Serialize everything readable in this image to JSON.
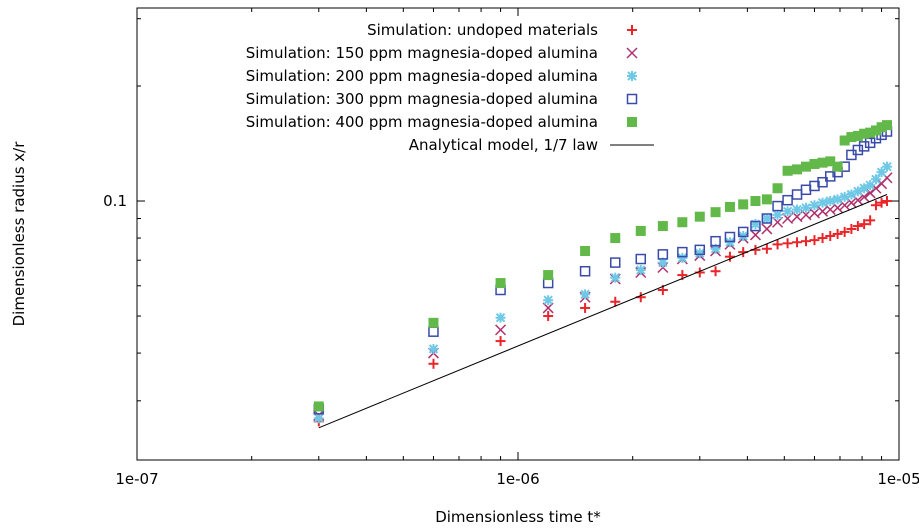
{
  "chart_data": {
    "type": "scatter",
    "title": "",
    "xlabel": "Dimensionless time t*",
    "ylabel": "Dimensionless radius x/r",
    "x_scale": "log",
    "y_scale": "log",
    "xlim": [
      1e-07,
      1e-05
    ],
    "ylim": [
      0.021,
      0.32
    ],
    "x_ticks": [
      {
        "value": 1e-07,
        "label": "1e-07"
      },
      {
        "value": 1e-06,
        "label": "1e-06"
      },
      {
        "value": 1e-05,
        "label": "1e-05"
      }
    ],
    "y_ticks": [
      {
        "value": 0.1,
        "label": "0.1"
      }
    ],
    "grid": false,
    "legend_position": "top-right",
    "series": [
      {
        "name": "Simulation: undoped materials",
        "marker": "plus",
        "color": "#e8262a",
        "points": [
          [
            3e-07,
            0.0265
          ],
          [
            6e-07,
            0.0375
          ],
          [
            9e-07,
            0.043
          ],
          [
            1.2e-06,
            0.05
          ],
          [
            1.5e-06,
            0.0525
          ],
          [
            1.8e-06,
            0.0545
          ],
          [
            2.1e-06,
            0.056
          ],
          [
            2.4e-06,
            0.0585
          ],
          [
            2.7e-06,
            0.064
          ],
          [
            3e-06,
            0.065
          ],
          [
            3.3e-06,
            0.0655
          ],
          [
            3.6e-06,
            0.0715
          ],
          [
            3.9e-06,
            0.0735
          ],
          [
            4.2e-06,
            0.0745
          ],
          [
            4.5e-06,
            0.075
          ],
          [
            4.8e-06,
            0.077
          ],
          [
            5.1e-06,
            0.0775
          ],
          [
            5.4e-06,
            0.078
          ],
          [
            5.7e-06,
            0.0785
          ],
          [
            6e-06,
            0.079
          ],
          [
            6.3e-06,
            0.08
          ],
          [
            6.6e-06,
            0.081
          ],
          [
            6.9e-06,
            0.082
          ],
          [
            7.2e-06,
            0.083
          ],
          [
            7.5e-06,
            0.0845
          ],
          [
            7.8e-06,
            0.086
          ],
          [
            8.1e-06,
            0.087
          ],
          [
            8.4e-06,
            0.089
          ],
          [
            8.7e-06,
            0.0975
          ],
          [
            9e-06,
            0.099
          ],
          [
            9.3e-06,
            0.1
          ]
        ]
      },
      {
        "name": "Simulation: 150 ppm magnesia-doped alumina",
        "marker": "cross",
        "color": "#b0306e",
        "points": [
          [
            3e-07,
            0.0275
          ],
          [
            6e-07,
            0.04
          ],
          [
            9e-07,
            0.046
          ],
          [
            1.2e-06,
            0.0525
          ],
          [
            1.5e-06,
            0.056
          ],
          [
            1.8e-06,
            0.0625
          ],
          [
            2.1e-06,
            0.065
          ],
          [
            2.4e-06,
            0.067
          ],
          [
            2.7e-06,
            0.0705
          ],
          [
            3e-06,
            0.072
          ],
          [
            3.3e-06,
            0.074
          ],
          [
            3.6e-06,
            0.077
          ],
          [
            3.9e-06,
            0.08
          ],
          [
            4.2e-06,
            0.0815
          ],
          [
            4.5e-06,
            0.0845
          ],
          [
            4.8e-06,
            0.088
          ],
          [
            5.1e-06,
            0.09
          ],
          [
            5.4e-06,
            0.091
          ],
          [
            5.7e-06,
            0.092
          ],
          [
            6e-06,
            0.093
          ],
          [
            6.3e-06,
            0.094
          ],
          [
            6.6e-06,
            0.095
          ],
          [
            6.9e-06,
            0.096
          ],
          [
            7.2e-06,
            0.0975
          ],
          [
            7.5e-06,
            0.099
          ],
          [
            7.8e-06,
            0.1005
          ],
          [
            8.1e-06,
            0.1025
          ],
          [
            8.4e-06,
            0.105
          ],
          [
            8.7e-06,
            0.108
          ],
          [
            9e-06,
            0.111
          ],
          [
            9.3e-06,
            0.115
          ]
        ]
      },
      {
        "name": "Simulation: 200 ppm magnesia-doped alumina",
        "marker": "star",
        "color": "#6ec8e6",
        "points": [
          [
            3e-07,
            0.027
          ],
          [
            6e-07,
            0.041
          ],
          [
            9e-07,
            0.0495
          ],
          [
            1.2e-06,
            0.055
          ],
          [
            1.5e-06,
            0.057
          ],
          [
            1.8e-06,
            0.063
          ],
          [
            2.1e-06,
            0.066
          ],
          [
            2.4e-06,
            0.069
          ],
          [
            2.7e-06,
            0.071
          ],
          [
            3e-06,
            0.073
          ],
          [
            3.3e-06,
            0.075
          ],
          [
            3.6e-06,
            0.078
          ],
          [
            3.9e-06,
            0.081
          ],
          [
            4.2e-06,
            0.087
          ],
          [
            4.5e-06,
            0.09
          ],
          [
            4.8e-06,
            0.092
          ],
          [
            5.1e-06,
            0.094
          ],
          [
            5.4e-06,
            0.095
          ],
          [
            5.7e-06,
            0.096
          ],
          [
            6e-06,
            0.0975
          ],
          [
            6.3e-06,
            0.099
          ],
          [
            6.6e-06,
            0.1
          ],
          [
            6.9e-06,
            0.101
          ],
          [
            7.2e-06,
            0.1025
          ],
          [
            7.5e-06,
            0.104
          ],
          [
            7.8e-06,
            0.106
          ],
          [
            8.1e-06,
            0.108
          ],
          [
            8.4e-06,
            0.11
          ],
          [
            8.7e-06,
            0.114
          ],
          [
            9e-06,
            0.119
          ],
          [
            9.3e-06,
            0.123
          ]
        ]
      },
      {
        "name": "Simulation: 300 ppm magnesia-doped alumina",
        "marker": "open-square",
        "color": "#3a4aa8",
        "points": [
          [
            3e-07,
            0.0285
          ],
          [
            6e-07,
            0.0455
          ],
          [
            9e-07,
            0.0585
          ],
          [
            1.2e-06,
            0.061
          ],
          [
            1.5e-06,
            0.0655
          ],
          [
            1.8e-06,
            0.069
          ],
          [
            2.1e-06,
            0.0705
          ],
          [
            2.4e-06,
            0.0725
          ],
          [
            2.7e-06,
            0.0735
          ],
          [
            3e-06,
            0.0745
          ],
          [
            3.3e-06,
            0.0785
          ],
          [
            3.6e-06,
            0.0805
          ],
          [
            3.9e-06,
            0.083
          ],
          [
            4.2e-06,
            0.086
          ],
          [
            4.5e-06,
            0.09
          ],
          [
            4.8e-06,
            0.097
          ],
          [
            5.1e-06,
            0.1005
          ],
          [
            5.4e-06,
            0.104
          ],
          [
            5.7e-06,
            0.107
          ],
          [
            6e-06,
            0.1095
          ],
          [
            6.3e-06,
            0.112
          ],
          [
            6.6e-06,
            0.116
          ],
          [
            6.9e-06,
            0.119
          ],
          [
            7.2e-06,
            0.123
          ],
          [
            7.5e-06,
            0.132
          ],
          [
            7.8e-06,
            0.136
          ],
          [
            8.1e-06,
            0.139
          ],
          [
            8.4e-06,
            0.142
          ],
          [
            8.7e-06,
            0.146
          ],
          [
            9e-06,
            0.149
          ],
          [
            9.3e-06,
            0.152
          ]
        ]
      },
      {
        "name": "Simulation: 400 ppm magnesia-doped alumina",
        "marker": "filled-square",
        "color": "#63b84a",
        "points": [
          [
            3e-07,
            0.029
          ],
          [
            6e-07,
            0.048
          ],
          [
            9e-07,
            0.061
          ],
          [
            1.2e-06,
            0.064
          ],
          [
            1.5e-06,
            0.074
          ],
          [
            1.8e-06,
            0.08
          ],
          [
            2.1e-06,
            0.0835
          ],
          [
            2.4e-06,
            0.086
          ],
          [
            2.7e-06,
            0.088
          ],
          [
            3e-06,
            0.091
          ],
          [
            3.3e-06,
            0.0935
          ],
          [
            3.6e-06,
            0.0965
          ],
          [
            3.9e-06,
            0.098
          ],
          [
            4.2e-06,
            0.1
          ],
          [
            4.5e-06,
            0.101
          ],
          [
            4.8e-06,
            0.108
          ],
          [
            5.1e-06,
            0.12
          ],
          [
            5.4e-06,
            0.121
          ],
          [
            5.7e-06,
            0.123
          ],
          [
            6e-06,
            0.125
          ],
          [
            6.3e-06,
            0.126
          ],
          [
            6.6e-06,
            0.127
          ],
          [
            6.9e-06,
            0.123
          ],
          [
            7.2e-06,
            0.144
          ],
          [
            7.5e-06,
            0.147
          ],
          [
            7.8e-06,
            0.148
          ],
          [
            8.1e-06,
            0.15
          ],
          [
            8.4e-06,
            0.151
          ],
          [
            8.7e-06,
            0.153
          ],
          [
            9e-06,
            0.156
          ],
          [
            9.3e-06,
            0.158
          ]
        ]
      },
      {
        "name": "Analytical model, 1/7 law",
        "marker": "line",
        "color": "#000000",
        "points": [
          [
            3e-07,
            0.0255
          ],
          [
            9.3e-06,
            0.104
          ]
        ]
      }
    ]
  }
}
